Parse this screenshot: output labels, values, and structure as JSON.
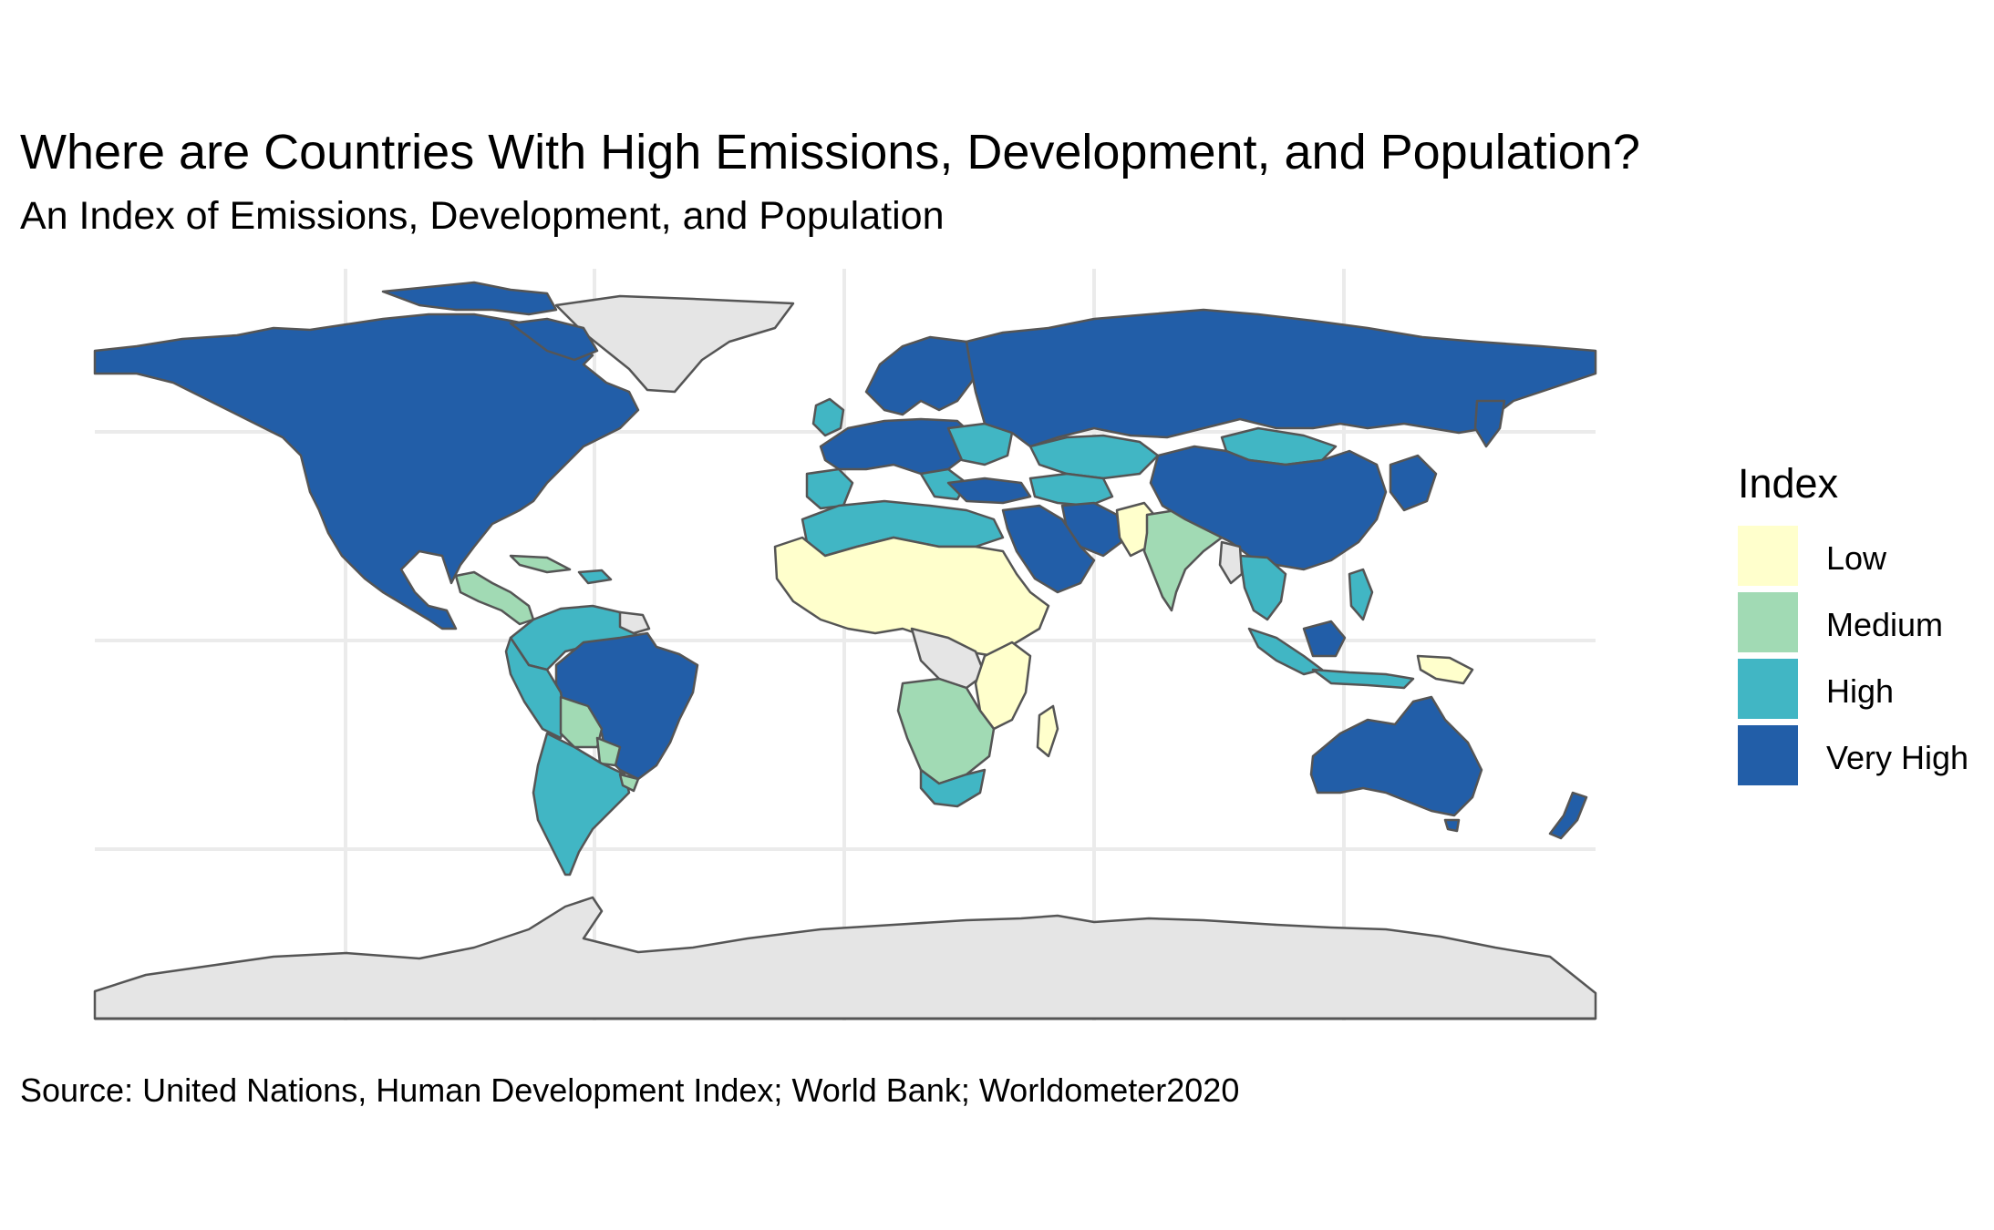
{
  "title": "Where are Countries With High Emissions, Development, and Population?",
  "subtitle": "An Index of Emissions, Development, and Population",
  "caption": "Source: United Nations, Human Development Index; World Bank; Worldometer2020",
  "legend": {
    "title": "Index",
    "items": [
      {
        "label": "Low",
        "color": "#ffffcc"
      },
      {
        "label": "Medium",
        "color": "#a1dab4"
      },
      {
        "label": "High",
        "color": "#41b6c4"
      },
      {
        "label": "Very High",
        "color": "#225ea8"
      }
    ]
  },
  "colors": {
    "no_data": "#e5e5e5",
    "border": "#555555",
    "grid": "#ebebeb"
  }
}
